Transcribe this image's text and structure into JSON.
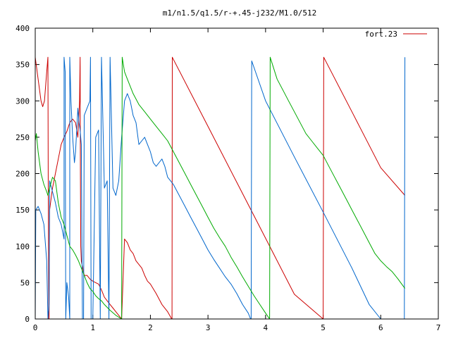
{
  "chart_data": {
    "type": "line",
    "title": "m1/n1.5/q1.5/r-+.45-j232/M1.0/512",
    "xlabel": "",
    "ylabel": "",
    "xlim": [
      0,
      7
    ],
    "ylim": [
      0,
      400
    ],
    "x_ticks": [
      "0",
      "1",
      "2",
      "3",
      "4",
      "5",
      "6",
      "7"
    ],
    "y_ticks": [
      "0",
      "50",
      "100",
      "150",
      "200",
      "250",
      "300",
      "350",
      "400"
    ],
    "grid": false,
    "legend": {
      "position": "top-right",
      "entries": [
        "fort.23"
      ]
    },
    "series": [
      {
        "name": "fort.23",
        "color": "#cc0000",
        "points": [
          [
            0.0,
            360
          ],
          [
            0.05,
            330
          ],
          [
            0.1,
            300
          ],
          [
            0.13,
            292
          ],
          [
            0.16,
            300
          ],
          [
            0.2,
            340
          ],
          [
            0.22,
            360
          ],
          [
            0.225,
            200
          ],
          [
            0.23,
            100
          ],
          [
            0.235,
            0
          ],
          [
            0.24,
            0
          ],
          [
            0.25,
            150
          ],
          [
            0.3,
            180
          ],
          [
            0.35,
            200
          ],
          [
            0.4,
            220
          ],
          [
            0.45,
            240
          ],
          [
            0.5,
            250
          ],
          [
            0.55,
            258
          ],
          [
            0.6,
            270
          ],
          [
            0.65,
            275
          ],
          [
            0.7,
            270
          ],
          [
            0.74,
            250
          ],
          [
            0.77,
            300
          ],
          [
            0.78,
            360
          ],
          [
            0.785,
            200
          ],
          [
            0.79,
            100
          ],
          [
            0.8,
            80
          ],
          [
            0.85,
            60
          ],
          [
            0.9,
            60
          ],
          [
            0.95,
            55
          ],
          [
            1.0,
            52
          ],
          [
            1.05,
            50
          ],
          [
            1.1,
            48
          ],
          [
            1.15,
            40
          ],
          [
            1.2,
            30
          ],
          [
            1.25,
            25
          ],
          [
            1.3,
            20
          ],
          [
            1.35,
            15
          ],
          [
            1.4,
            10
          ],
          [
            1.45,
            5
          ],
          [
            1.5,
            0
          ],
          [
            1.55,
            110
          ],
          [
            1.6,
            105
          ],
          [
            1.65,
            95
          ],
          [
            1.7,
            90
          ],
          [
            1.75,
            80
          ],
          [
            1.8,
            75
          ],
          [
            1.85,
            70
          ],
          [
            1.9,
            60
          ],
          [
            1.95,
            52
          ],
          [
            2.0,
            48
          ],
          [
            2.1,
            35
          ],
          [
            2.2,
            20
          ],
          [
            2.3,
            10
          ],
          [
            2.37,
            0
          ],
          [
            2.375,
            0
          ],
          [
            2.38,
            360
          ],
          [
            3.0,
            265
          ],
          [
            3.5,
            188
          ],
          [
            4.0,
            111
          ],
          [
            4.5,
            34
          ],
          [
            5.0,
            0
          ],
          [
            5.01,
            360
          ],
          [
            5.5,
            285
          ],
          [
            6.0,
            208
          ],
          [
            6.42,
            170
          ]
        ]
      },
      {
        "name": "",
        "color": "#0066cc",
        "points": [
          [
            0.0,
            0
          ],
          [
            0.01,
            150
          ],
          [
            0.05,
            155
          ],
          [
            0.1,
            145
          ],
          [
            0.15,
            130
          ],
          [
            0.2,
            80
          ],
          [
            0.22,
            0
          ],
          [
            0.24,
            20
          ],
          [
            0.25,
            190
          ],
          [
            0.3,
            175
          ],
          [
            0.35,
            160
          ],
          [
            0.4,
            140
          ],
          [
            0.45,
            130
          ],
          [
            0.5,
            110
          ],
          [
            0.5,
            360
          ],
          [
            0.52,
            340
          ],
          [
            0.53,
            0
          ],
          [
            0.55,
            50
          ],
          [
            0.58,
            30
          ],
          [
            0.6,
            0
          ],
          [
            0.6,
            360
          ],
          [
            0.62,
            300
          ],
          [
            0.65,
            250
          ],
          [
            0.68,
            215
          ],
          [
            0.7,
            230
          ],
          [
            0.74,
            290
          ],
          [
            0.76,
            270
          ],
          [
            0.78,
            260
          ],
          [
            0.8,
            240
          ],
          [
            0.82,
            0
          ],
          [
            0.84,
            0
          ],
          [
            0.85,
            280
          ],
          [
            0.9,
            290
          ],
          [
            0.95,
            300
          ],
          [
            0.96,
            360
          ],
          [
            0.97,
            0
          ],
          [
            1.0,
            0
          ],
          [
            1.05,
            250
          ],
          [
            1.1,
            260
          ],
          [
            1.13,
            0
          ],
          [
            1.15,
            360
          ],
          [
            1.2,
            180
          ],
          [
            1.25,
            190
          ],
          [
            1.28,
            0
          ],
          [
            1.3,
            360
          ],
          [
            1.35,
            180
          ],
          [
            1.4,
            170
          ],
          [
            1.45,
            190
          ],
          [
            1.5,
            250
          ],
          [
            1.55,
            300
          ],
          [
            1.6,
            310
          ],
          [
            1.65,
            300
          ],
          [
            1.7,
            280
          ],
          [
            1.75,
            270
          ],
          [
            1.8,
            240
          ],
          [
            1.85,
            245
          ],
          [
            1.9,
            250
          ],
          [
            1.95,
            240
          ],
          [
            2.0,
            230
          ],
          [
            2.05,
            215
          ],
          [
            2.1,
            210
          ],
          [
            2.15,
            215
          ],
          [
            2.2,
            220
          ],
          [
            2.25,
            210
          ],
          [
            2.3,
            195
          ],
          [
            2.35,
            190
          ],
          [
            2.4,
            185
          ],
          [
            2.5,
            170
          ],
          [
            2.6,
            155
          ],
          [
            2.7,
            140
          ],
          [
            2.8,
            125
          ],
          [
            2.9,
            110
          ],
          [
            3.0,
            95
          ],
          [
            3.1,
            82
          ],
          [
            3.2,
            70
          ],
          [
            3.3,
            58
          ],
          [
            3.4,
            48
          ],
          [
            3.5,
            35
          ],
          [
            3.6,
            20
          ],
          [
            3.7,
            8
          ],
          [
            3.74,
            0
          ],
          [
            3.75,
            0
          ],
          [
            3.76,
            355
          ],
          [
            4.0,
            300
          ],
          [
            4.5,
            223
          ],
          [
            5.0,
            147
          ],
          [
            5.5,
            70
          ],
          [
            5.8,
            20
          ],
          [
            6.0,
            0
          ],
          [
            6.1,
            0
          ],
          [
            6.2,
            0
          ],
          [
            6.3,
            0
          ],
          [
            6.4,
            0
          ],
          [
            6.41,
            0
          ],
          [
            6.42,
            360
          ]
        ]
      },
      {
        "name": "",
        "color": "#00aa00",
        "points": [
          [
            0.0,
            245
          ],
          [
            0.02,
            255
          ],
          [
            0.05,
            230
          ],
          [
            0.1,
            200
          ],
          [
            0.15,
            185
          ],
          [
            0.2,
            175
          ],
          [
            0.22,
            170
          ],
          [
            0.25,
            180
          ],
          [
            0.3,
            195
          ],
          [
            0.35,
            190
          ],
          [
            0.4,
            160
          ],
          [
            0.45,
            140
          ],
          [
            0.5,
            130
          ],
          [
            0.55,
            115
          ],
          [
            0.6,
            100
          ],
          [
            0.65,
            95
          ],
          [
            0.7,
            88
          ],
          [
            0.75,
            80
          ],
          [
            0.8,
            70
          ],
          [
            0.85,
            60
          ],
          [
            0.9,
            50
          ],
          [
            0.95,
            42
          ],
          [
            1.0,
            38
          ],
          [
            1.05,
            32
          ],
          [
            1.1,
            28
          ],
          [
            1.15,
            25
          ],
          [
            1.2,
            20
          ],
          [
            1.3,
            12
          ],
          [
            1.4,
            5
          ],
          [
            1.5,
            0
          ],
          [
            1.51,
            360
          ],
          [
            1.55,
            340
          ],
          [
            1.6,
            330
          ],
          [
            1.7,
            310
          ],
          [
            1.8,
            295
          ],
          [
            1.9,
            285
          ],
          [
            2.0,
            275
          ],
          [
            2.1,
            265
          ],
          [
            2.2,
            255
          ],
          [
            2.3,
            245
          ],
          [
            2.4,
            230
          ],
          [
            2.5,
            215
          ],
          [
            2.6,
            200
          ],
          [
            2.7,
            185
          ],
          [
            2.8,
            170
          ],
          [
            2.9,
            155
          ],
          [
            3.0,
            140
          ],
          [
            3.1,
            125
          ],
          [
            3.2,
            112
          ],
          [
            3.3,
            100
          ],
          [
            3.4,
            85
          ],
          [
            3.5,
            72
          ],
          [
            3.6,
            58
          ],
          [
            3.7,
            45
          ],
          [
            3.8,
            32
          ],
          [
            3.9,
            20
          ],
          [
            4.0,
            8
          ],
          [
            4.07,
            0
          ],
          [
            4.08,
            360
          ],
          [
            4.2,
            330
          ],
          [
            4.3,
            315
          ],
          [
            4.4,
            300
          ],
          [
            4.5,
            285
          ],
          [
            4.6,
            270
          ],
          [
            4.7,
            255
          ],
          [
            4.8,
            245
          ],
          [
            4.9,
            235
          ],
          [
            5.0,
            225
          ],
          [
            5.1,
            210
          ],
          [
            5.2,
            195
          ],
          [
            5.3,
            180
          ],
          [
            5.4,
            165
          ],
          [
            5.5,
            150
          ],
          [
            5.6,
            135
          ],
          [
            5.7,
            120
          ],
          [
            5.8,
            105
          ],
          [
            5.9,
            90
          ],
          [
            6.0,
            80
          ],
          [
            6.1,
            72
          ],
          [
            6.2,
            65
          ],
          [
            6.3,
            55
          ],
          [
            6.42,
            42
          ]
        ]
      }
    ]
  }
}
